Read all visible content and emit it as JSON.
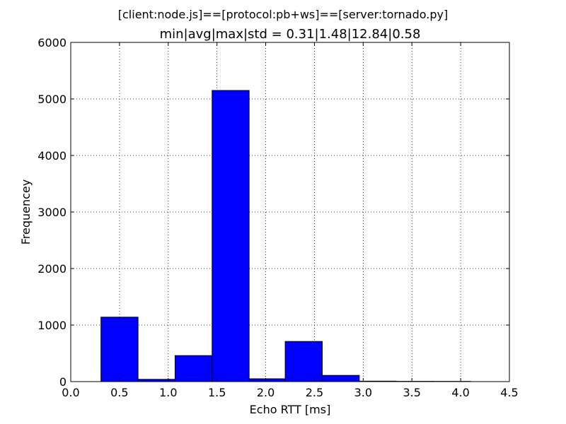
{
  "chart_data": {
    "type": "bar",
    "suptitle": "[client:node.js]==[protocol:pb+ws]==[server:tornado.py]",
    "title": "min|avg|max|std = 0.31|1.48|12.84|0.58",
    "xlabel": "Echo RTT [ms]",
    "ylabel": "Frequencey",
    "xlim": [
      0.0,
      4.5
    ],
    "ylim": [
      0,
      6000
    ],
    "xticks": [
      0.0,
      0.5,
      1.0,
      1.5,
      2.0,
      2.5,
      3.0,
      3.5,
      4.0,
      4.5
    ],
    "xtick_labels": [
      "0.0",
      "0.5",
      "1.0",
      "1.5",
      "2.0",
      "2.5",
      "3.0",
      "3.5",
      "4.0",
      "4.5"
    ],
    "yticks": [
      0,
      1000,
      2000,
      3000,
      4000,
      5000,
      6000
    ],
    "ytick_labels": [
      "0",
      "1000",
      "2000",
      "3000",
      "4000",
      "5000",
      "6000"
    ],
    "grid": true,
    "bar_color": "#0000ff",
    "bins": [
      {
        "x0": 0.31,
        "x1": 0.69,
        "value": 1140
      },
      {
        "x0": 0.69,
        "x1": 1.07,
        "value": 40
      },
      {
        "x0": 1.07,
        "x1": 1.45,
        "value": 460
      },
      {
        "x0": 1.45,
        "x1": 1.83,
        "value": 5150
      },
      {
        "x0": 1.83,
        "x1": 2.2,
        "value": 50
      },
      {
        "x0": 2.2,
        "x1": 2.58,
        "value": 710
      },
      {
        "x0": 2.58,
        "x1": 2.96,
        "value": 110
      },
      {
        "x0": 2.96,
        "x1": 3.34,
        "value": 8
      },
      {
        "x0": 3.34,
        "x1": 3.72,
        "value": 5
      },
      {
        "x0": 3.72,
        "x1": 4.1,
        "value": 4
      }
    ]
  }
}
